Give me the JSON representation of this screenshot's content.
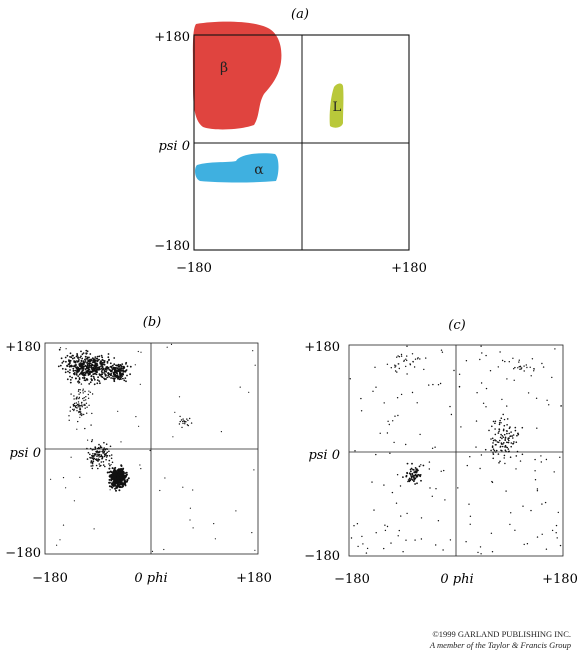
{
  "panel_a": {
    "label": "(a)",
    "y_top": "+180",
    "y_mid": "psi 0",
    "y_bottom": "−180",
    "x_left": "−180",
    "x_right": "+180",
    "regions": [
      {
        "label": "β",
        "color": "#e0443f"
      },
      {
        "label": "α",
        "color": "#3fb0e0"
      },
      {
        "label": "L",
        "color": "#b9c83a"
      }
    ]
  },
  "panel_b": {
    "label": "(b)",
    "y_top": "+180",
    "y_mid": "psi 0",
    "y_bottom": "−180",
    "x_left": "−180",
    "x_mid": "0 phi",
    "x_right": "+180"
  },
  "panel_c": {
    "label": "(c)",
    "y_top": "+180",
    "y_mid": "psi 0",
    "y_bottom": "−180",
    "x_left": "−180",
    "x_mid": "0 phi",
    "x_right": "+180"
  },
  "copyright": {
    "line1": "©1999 GARLAND PUBLISHING INC.",
    "line2": "A member of the Taylor & Francis Group"
  }
}
